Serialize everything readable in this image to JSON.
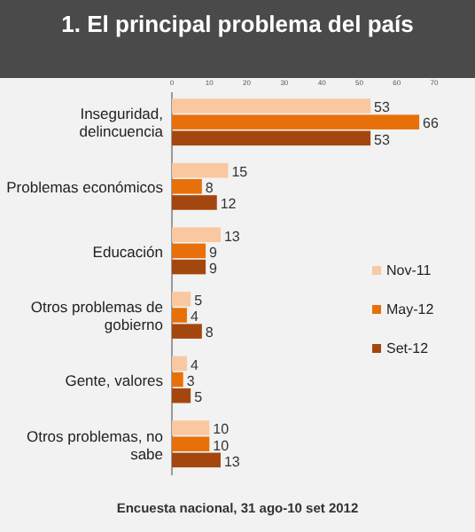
{
  "chart_data": {
    "type": "bar",
    "orientation": "horizontal",
    "title": "1. El principal problema del país",
    "categories": [
      "Inseguridad, delincuencia",
      "Problemas económicos",
      "Educación",
      "Otros problemas de gobierno",
      "Gente, valores",
      "Otros problemas, no sabe"
    ],
    "series": [
      {
        "name": "Nov-11",
        "color": "#f9c8a0",
        "values": [
          53,
          15,
          13,
          5,
          4,
          10
        ]
      },
      {
        "name": "May-12",
        "color": "#e8700a",
        "values": [
          66,
          8,
          9,
          4,
          3,
          10
        ]
      },
      {
        "name": "Set-12",
        "color": "#a4470f",
        "values": [
          53,
          12,
          9,
          8,
          5,
          13
        ]
      }
    ],
    "xlim": [
      0,
      70
    ],
    "xticks": [
      0,
      10,
      20,
      30,
      40,
      50,
      60,
      70
    ],
    "data_labels": true,
    "legend": "right",
    "annotations": [
      "Encuesta nacional, 31 ago-10 set 2012"
    ]
  }
}
